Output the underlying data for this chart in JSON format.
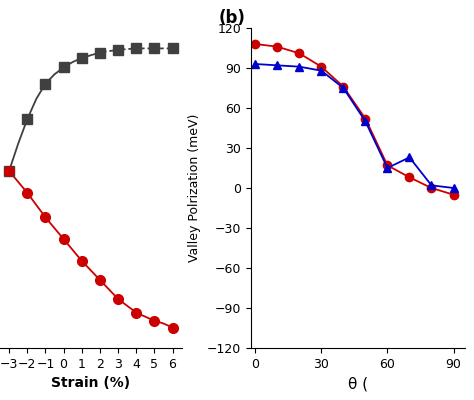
{
  "panel_a": {
    "black_x": [
      -3,
      -2.5,
      -2,
      -1.5,
      -1,
      -0.5,
      0,
      0.5,
      1,
      1.5,
      2,
      2.5,
      3,
      3.5,
      4,
      4.5,
      5,
      5.5,
      6
    ],
    "black_y": [
      20,
      40,
      58,
      73,
      84,
      91,
      96,
      100,
      103,
      105,
      107,
      108,
      109,
      109.5,
      110,
      110,
      110,
      110,
      110
    ],
    "black_style_solid_upto": 2,
    "red_x": [
      -3,
      -2.5,
      -2,
      -1.5,
      -1,
      -0.5,
      0,
      0.5,
      1,
      1.5,
      2,
      2.5,
      3,
      3.5,
      4,
      4.5,
      5,
      5.5,
      6
    ],
    "red_y": [
      20,
      12,
      4,
      -5,
      -14,
      -22,
      -30,
      -38,
      -46,
      -53,
      -60,
      -67,
      -74,
      -79,
      -84,
      -87,
      -90,
      -92,
      -95
    ],
    "black_color": "#404040",
    "red_color": "#cc0000",
    "xlabel": "Strain (%)",
    "xlim": [
      -3.5,
      6.5
    ],
    "xticks": [
      -3,
      -2,
      -1,
      0,
      1,
      2,
      3,
      4,
      5,
      6
    ],
    "label_text": "2",
    "marker_x_black": [
      -3,
      -2,
      -1,
      0,
      1,
      2,
      3,
      4,
      5,
      6
    ],
    "marker_y_black": [
      20,
      58,
      84,
      96,
      103,
      107,
      109,
      110,
      110,
      110
    ],
    "marker_x_red": [
      -3,
      -2,
      -1,
      0,
      1,
      2,
      3,
      4,
      5,
      6
    ],
    "marker_y_red": [
      20,
      4,
      -14,
      -30,
      -46,
      -60,
      -74,
      -84,
      -90,
      -95
    ]
  },
  "panel_b": {
    "red_x": [
      0,
      10,
      20,
      30,
      40,
      50,
      60,
      70,
      80,
      90
    ],
    "red_y": [
      108,
      106,
      101,
      91,
      76,
      52,
      17,
      8,
      0,
      -5
    ],
    "blue_x": [
      0,
      10,
      20,
      30,
      40,
      50,
      60,
      70,
      80,
      90
    ],
    "blue_y": [
      93,
      92,
      91,
      88,
      75,
      50,
      15,
      23,
      2,
      0
    ],
    "red_color": "#cc0000",
    "blue_color": "#0000cc",
    "ylabel": "Valley Polrization (meV)",
    "xlabel": "θ (",
    "xlim": [
      -2,
      95
    ],
    "ylim": [
      -120,
      120
    ],
    "yticks": [
      -120,
      -90,
      -60,
      -30,
      0,
      30,
      60,
      90,
      120
    ],
    "xticks": [
      0,
      30,
      60,
      90
    ],
    "panel_label": "(b)"
  }
}
